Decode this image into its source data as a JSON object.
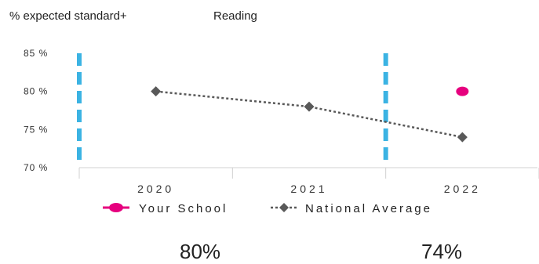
{
  "header": {
    "metric": "% expected standard+",
    "subject": "Reading"
  },
  "chart_data": {
    "type": "line",
    "title": "",
    "xlabel": "",
    "ylabel": "",
    "categories": [
      "2020",
      "2021",
      "2022"
    ],
    "ylim": [
      70,
      85
    ],
    "yticks": [
      "70 %",
      "75 %",
      "80 %",
      "85 %"
    ],
    "series": [
      {
        "name": "Your School",
        "values": [
          null,
          null,
          80
        ],
        "color": "#e6007e",
        "marker": "ellipse"
      },
      {
        "name": "National Average",
        "values": [
          80,
          78,
          74
        ],
        "color": "#595959",
        "marker": "diamond",
        "dash": true
      }
    ],
    "reference_lines": {
      "style": "dashed",
      "color": "#3bb3e3",
      "positions": [
        "before 2020",
        "between 2021 and 2022"
      ]
    },
    "legend": "bottom"
  },
  "stats": {
    "school": "80%",
    "national": "74%"
  }
}
